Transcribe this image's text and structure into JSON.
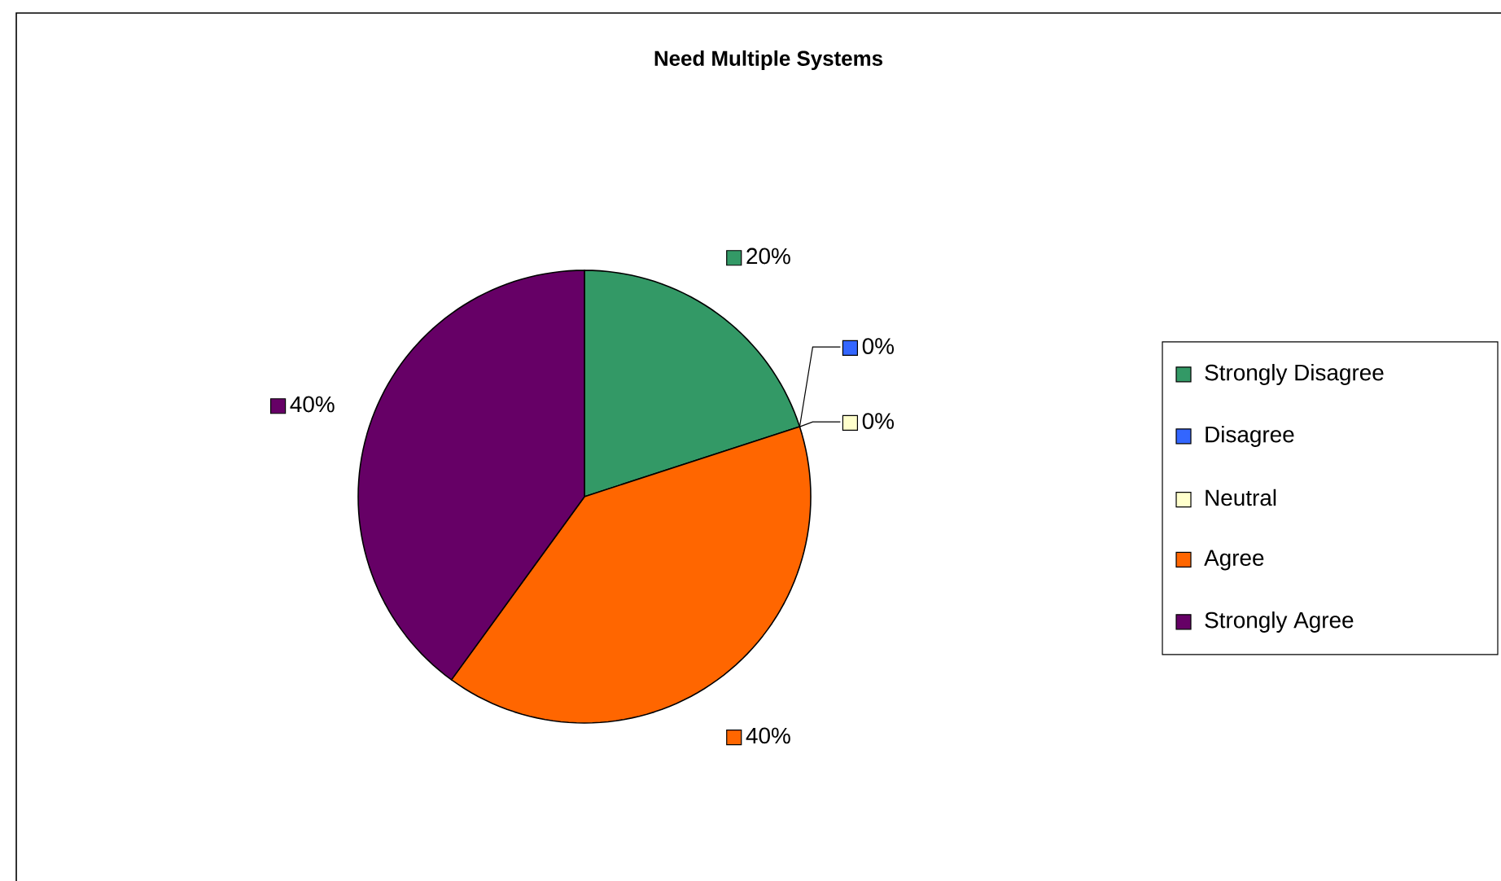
{
  "chart_data": {
    "type": "pie",
    "title": "Need Multiple Systems",
    "categories": [
      "Strongly Disagree",
      "Disagree",
      "Neutral",
      "Agree",
      "Strongly Agree"
    ],
    "values": [
      20,
      0,
      0,
      40,
      40
    ],
    "colors": [
      "#339966",
      "#3366ff",
      "#ffffcc",
      "#ff6600",
      "#660066"
    ],
    "value_labels": [
      "20%",
      "0%",
      "0%",
      "40%",
      "40%"
    ],
    "legend": "right"
  }
}
